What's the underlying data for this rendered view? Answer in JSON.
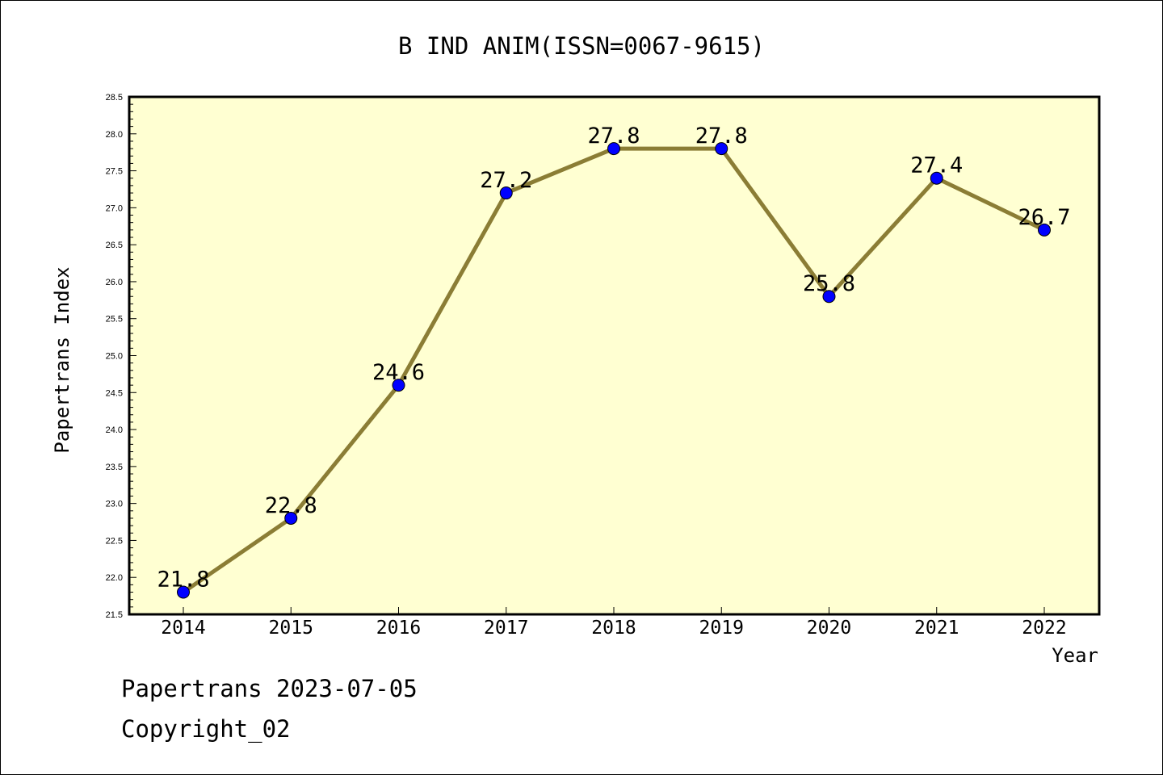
{
  "chart_data": {
    "type": "line",
    "title": "B IND ANIM(ISSN=0067-9615)",
    "xlabel": "Year",
    "ylabel": "Papertrans Index",
    "categories": [
      "2014",
      "2015",
      "2016",
      "2017",
      "2018",
      "2019",
      "2020",
      "2021",
      "2022"
    ],
    "series": [
      {
        "values": [
          21.8,
          22.8,
          24.6,
          27.2,
          27.8,
          27.8,
          25.8,
          27.4,
          26.7
        ]
      }
    ],
    "data_labels": [
      "21.8",
      "22.8",
      "24.6",
      "27.2",
      "27.8",
      "27.8",
      "25.8",
      "27.4",
      "26.7"
    ],
    "ylim": [
      21.5,
      28.5
    ],
    "yticks": [
      "21.5",
      "22.0",
      "22.5",
      "23.0",
      "23.5",
      "24.0",
      "24.5",
      "25.0",
      "25.5",
      "26.0",
      "26.5",
      "27.0",
      "27.5",
      "28.0",
      "28.5"
    ],
    "grid": false,
    "legend": "none",
    "colors": {
      "plot_background": "#ffffd2",
      "line": "#8b7d35",
      "marker": "#0000ff"
    }
  },
  "footer": {
    "line1": "Papertrans 2023-07-05",
    "line2": "Copyright_02"
  }
}
